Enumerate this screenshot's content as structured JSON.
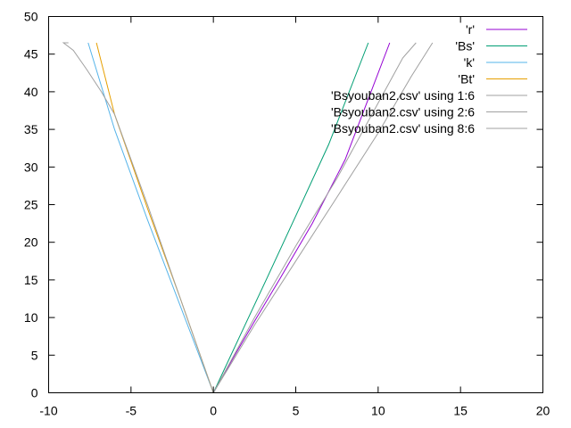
{
  "chart_data": {
    "type": "line",
    "title": "",
    "xlabel": "",
    "ylabel": "",
    "xlim": [
      -10,
      20
    ],
    "ylim": [
      0,
      50
    ],
    "xticks": [
      -10,
      -5,
      0,
      5,
      10,
      15,
      20
    ],
    "yticks": [
      0,
      5,
      10,
      15,
      20,
      25,
      30,
      35,
      40,
      45,
      50
    ],
    "xtick_labels": [
      "-10",
      "-5",
      "0",
      "5",
      "10",
      "15",
      "20"
    ],
    "ytick_labels": [
      "0",
      "5",
      "10",
      "15",
      "20",
      "25",
      "30",
      "35",
      "40",
      "45",
      "50"
    ],
    "grid": false,
    "legend_position": "top-right",
    "series": [
      {
        "name": "'r'",
        "color": "#9400d3",
        "x": [
          0,
          1.3,
          2.5,
          4,
          6,
          8,
          10.7
        ],
        "y": [
          0,
          5,
          9.5,
          15,
          22.5,
          31,
          46.5
        ]
      },
      {
        "name": "'Bs'",
        "color": "#009e73",
        "x": [
          0,
          1.6,
          3.2,
          5,
          7,
          9.4
        ],
        "y": [
          0,
          7.5,
          15,
          23.5,
          33,
          46.5
        ]
      },
      {
        "name": "'k'",
        "color": "#56b4e9",
        "x": [
          0,
          -2,
          -4,
          -6,
          -7.6
        ],
        "y": [
          0,
          11.5,
          23,
          35,
          46.5
        ]
      },
      {
        "name": "'Bt'",
        "color": "#e69f00",
        "x": [
          0,
          -2,
          -4,
          -6,
          -7.1
        ],
        "y": [
          0,
          12.5,
          24.5,
          37,
          46.5
        ]
      },
      {
        "name": "'Bsyouban2.csv' using 1:6",
        "color": "#a0a0a0",
        "x": [
          0,
          -2,
          -4,
          -6,
          -6.8,
          -7.7,
          -8.5,
          -9.1,
          -8.8
        ],
        "y": [
          0,
          12.5,
          25,
          37,
          40,
          43,
          45.5,
          46.5,
          46.5
        ]
      },
      {
        "name": "'Bsyouban2.csv' using 2:6",
        "color": "#a0a0a0",
        "x": [
          0,
          2.5,
          5,
          7.5,
          10,
          12,
          13.3
        ],
        "y": [
          0,
          9,
          17.5,
          26,
          34.5,
          42,
          46.5
        ]
      },
      {
        "name": "'Bsyouban2.csv' using 8:6",
        "color": "#a0a0a0",
        "x": [
          0,
          2.5,
          5,
          7.5,
          10,
          11.5,
          12.3
        ],
        "y": [
          0,
          10,
          19.5,
          28.5,
          38.5,
          44.5,
          46.5
        ]
      }
    ]
  }
}
